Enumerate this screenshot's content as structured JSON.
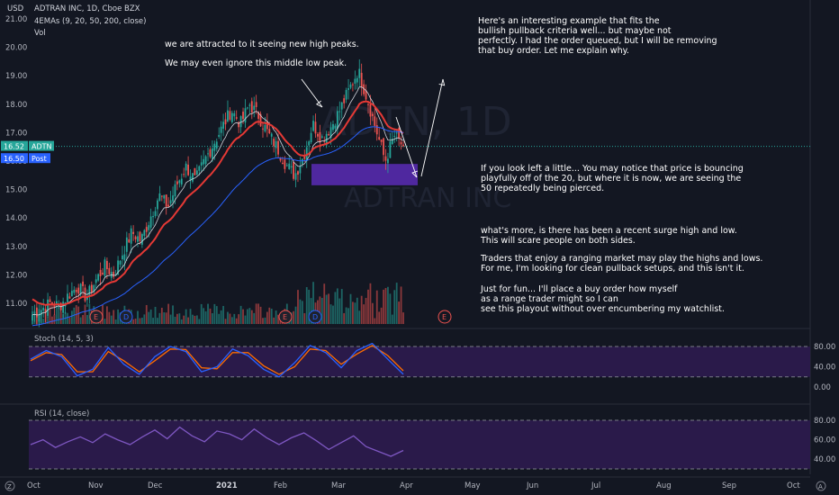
{
  "header": {
    "currency": "USD",
    "symbol_line": "ADTRAN INC, 1D, Cboe BZX",
    "indicator_line": "4EMAs (9, 20, 50, 200, close)",
    "vol_label": "Vol"
  },
  "watermark": {
    "symbol": "ADTN, 1D",
    "name": "ADTRAN INC"
  },
  "notes": {
    "peaks": "we are attracted to it seeing new high peaks.",
    "middle": "We may even ignore this middle low peak.",
    "intro": "Here's an interesting example that fits the\nbullish pullback criteria well... but maybe not\nperfectly. I had the order queued, but I will be removing\nthat buy order. Let me explain why.",
    "bounce": "If you look left a little... You may notice that price is bouncing\nplayfully off of the 20, but where it is now, we are seeing the\n50 repeatedly being pierced.",
    "surge": "what's more, is there has been a recent surge high and low.\nThis will scare people on both sides.",
    "traders": "Traders that enjoy a ranging market may play the highs and lows.\nFor me, I'm looking for clean pullback setups, and this isn't it.",
    "fun": "Just for fun... I'll place a buy order how myself\n  as a range trader might so I can\nsee this playout without over encumbering my watchlist."
  },
  "price_labels": {
    "last": {
      "value": "16.52",
      "ticker": "ADTN",
      "color": "#26a69a"
    },
    "post": {
      "value": "16.50",
      "label": "Post",
      "color": "#2962ff"
    }
  },
  "colors": {
    "up": "#26a69a",
    "down": "#ef5350",
    "ema20": "#e53935",
    "ema9": "#d1d4dc",
    "ema50": "#2962ff",
    "zone": "#5b2bb5",
    "stoch_k": "#2962ff",
    "stoch_d": "#ff6d00",
    "rsi": "#7e57c2",
    "band": "#2a1a4a"
  },
  "chart_data": [
    {
      "type": "candlestick",
      "title": "ADTRAN INC, 1D, Cboe BZX",
      "ylim": [
        10.3,
        21.4
      ],
      "y_ticks": [
        "21.00",
        "20.00",
        "19.00",
        "18.00",
        "17.00",
        "16.00",
        "15.00",
        "14.00",
        "13.00",
        "12.00",
        "11.00"
      ],
      "x_ticks": [
        "Oct",
        "Nov",
        "Dec",
        "2021",
        "Feb",
        "Mar",
        "Apr",
        "May",
        "Jun",
        "Jul",
        "Aug",
        "Sep",
        "Oct"
      ],
      "close_path": [
        10.6,
        10.8,
        11.0,
        10.9,
        11.3,
        11.6,
        11.2,
        11.8,
        12.3,
        12.0,
        12.8,
        13.5,
        13.2,
        14.0,
        14.8,
        14.4,
        15.2,
        15.8,
        15.3,
        16.0,
        16.6,
        17.2,
        17.8,
        17.3,
        18.0,
        17.6,
        17.0,
        16.5,
        15.9,
        15.5,
        16.2,
        17.3,
        16.8,
        17.2,
        17.8,
        18.5,
        19.2,
        18.2,
        17.1,
        16.0,
        16.9,
        16.52
      ],
      "buy_zone": [
        15.15,
        15.9
      ],
      "earnings_markers": [
        "E",
        "D",
        "E",
        "D",
        "E"
      ]
    },
    {
      "type": "line",
      "title": "Stoch (14, 5, 3)",
      "ylim": [
        0,
        100
      ],
      "y_ticks": [
        "80.00",
        "40.00",
        "0.00"
      ],
      "series": [
        {
          "values": [
            55,
            72,
            60,
            22,
            35,
            78,
            45,
            25,
            60,
            80,
            70,
            30,
            40,
            75,
            62,
            35,
            20,
            48,
            82,
            68,
            38,
            72,
            86,
            55,
            25
          ]
        },
        {
          "values": [
            52,
            68,
            64,
            30,
            30,
            70,
            52,
            30,
            52,
            75,
            74,
            38,
            36,
            68,
            68,
            42,
            25,
            40,
            75,
            72,
            45,
            65,
            82,
            62,
            32
          ]
        }
      ]
    },
    {
      "type": "line",
      "title": "RSI (14, close)",
      "ylim": [
        30,
        85
      ],
      "y_ticks": [
        "80.00",
        "60.00",
        "40.00"
      ],
      "series": [
        {
          "values": [
            55,
            60,
            52,
            58,
            63,
            57,
            66,
            60,
            55,
            63,
            70,
            61,
            73,
            64,
            58,
            69,
            66,
            60,
            71,
            62,
            55,
            62,
            67,
            59,
            50,
            57,
            64,
            53,
            48,
            43,
            49
          ]
        }
      ]
    }
  ]
}
